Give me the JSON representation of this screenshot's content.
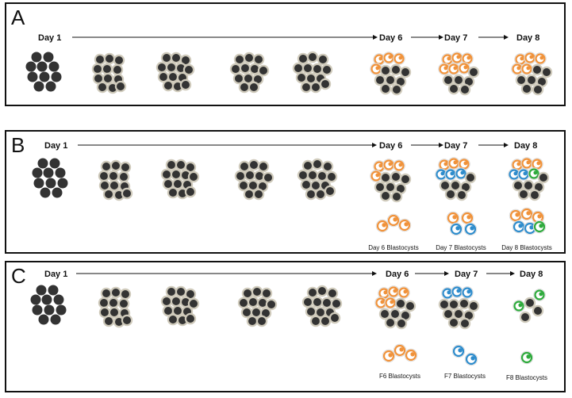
{
  "panels": [
    {
      "letter": "A",
      "day_start": "Day 1",
      "day6": "Day 6",
      "day7": "Day 7",
      "day8": "Day 8",
      "captions": []
    },
    {
      "letter": "B",
      "day_start": "Day 1",
      "day6": "Day 6",
      "day7": "Day 7",
      "day8": "Day 8",
      "captions": [
        "Day 6 Blastocysts",
        "Day 7 Blastocysts",
        "Day 8 Blastocysts"
      ]
    },
    {
      "letter": "C",
      "day_start": "Day 1",
      "day6": "Day 6",
      "day7": "Day 7",
      "day8": "Day 8",
      "captions": [
        "F6 Blastocysts",
        "F7 Blastocysts",
        "F8 Blastocysts"
      ]
    }
  ],
  "colors": {
    "cell": "#333333",
    "halo": "#cfcabb",
    "orange": "#f0923a",
    "blue": "#2e8ccc",
    "green": "#2eaa3c"
  },
  "icons": {
    "embryo": "embryo-icon",
    "blastocyst": "blastocyst-icon"
  }
}
